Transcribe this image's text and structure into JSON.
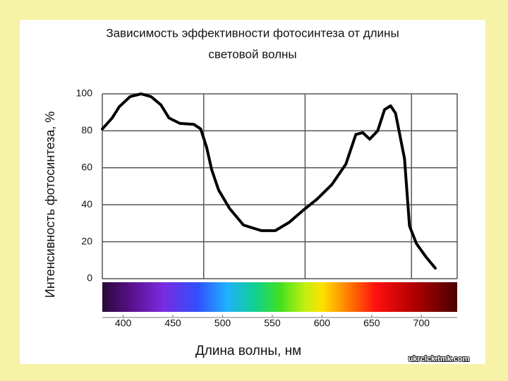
{
  "chart_data": {
    "type": "line",
    "title": [
      "Зависимость эффективности фотосинтеза от длины",
      "световой волны"
    ],
    "x_label": "Длина волны, нм",
    "y_label": "Интенсивность фотосинтеза, %",
    "watermark": "ukrclck.tmk.com",
    "x": [
      379,
      389,
      396,
      407,
      418,
      428,
      438,
      446,
      457,
      471,
      478,
      484,
      489,
      496,
      507,
      521,
      539,
      553,
      567,
      581,
      595,
      610,
      624,
      634,
      641,
      648,
      656,
      663,
      669,
      674,
      683,
      688,
      695,
      705,
      714
    ],
    "values": [
      81,
      87,
      93,
      98.5,
      100,
      98.5,
      94,
      87,
      84,
      83.5,
      81,
      71,
      59,
      48,
      38,
      29,
      26,
      26,
      30.5,
      37,
      43,
      51,
      62,
      78,
      79,
      75.5,
      80,
      91.5,
      93.5,
      89.5,
      65,
      28.5,
      19,
      11.5,
      5.7
    ],
    "color": "#000000",
    "xlim": [
      379,
      736
    ],
    "xticks": [
      400,
      450,
      500,
      550,
      600,
      650,
      700
    ],
    "xgrid": [
      481,
      583,
      690
    ],
    "ylim": [
      0,
      100
    ],
    "yticks": [
      0,
      20,
      40,
      60,
      80,
      100
    ],
    "grid": true
  }
}
